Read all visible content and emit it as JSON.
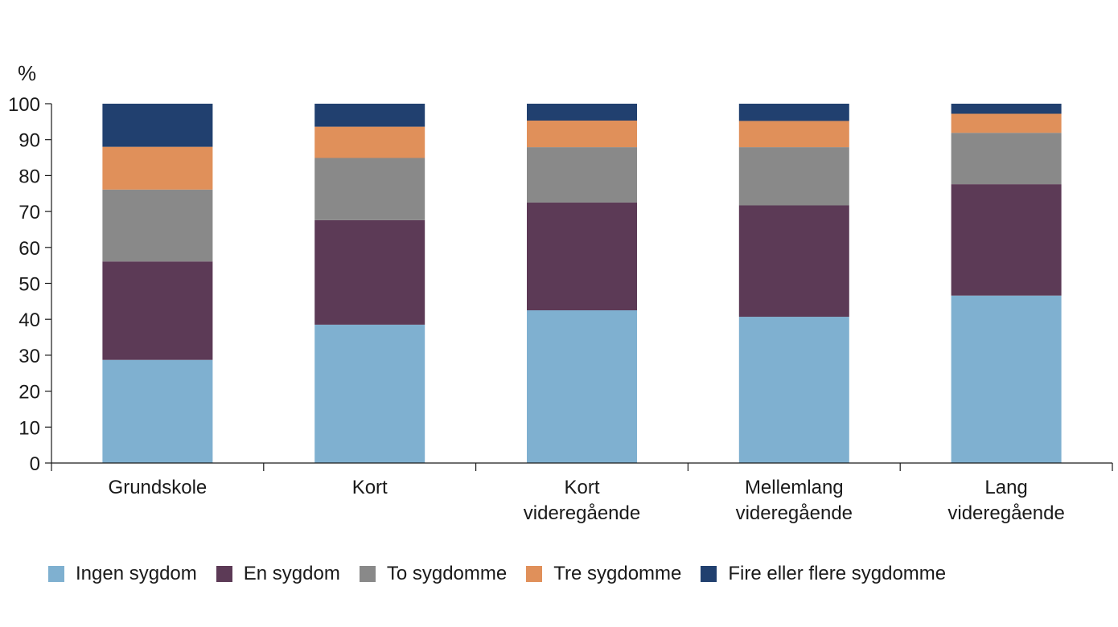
{
  "chart_data": {
    "type": "bar",
    "stacked": true,
    "title": "",
    "xlabel": "",
    "ylabel": "%",
    "ylim": [
      0,
      100
    ],
    "yticks": [
      0,
      10,
      20,
      30,
      40,
      50,
      60,
      70,
      80,
      90,
      100
    ],
    "grid": false,
    "legend_position": "bottom",
    "categories": [
      [
        "Grundskole"
      ],
      [
        "Kort"
      ],
      [
        "Kort",
        "videregående"
      ],
      [
        "Mellemlang",
        "videregående"
      ],
      [
        "Lang",
        "videregående"
      ]
    ],
    "series": [
      {
        "name": "Ingen sygdom",
        "color": "#7fb0d0",
        "values": [
          28.7,
          38.5,
          42.5,
          40.7,
          46.6
        ]
      },
      {
        "name": "En sygdom",
        "color": "#5c3a56",
        "values": [
          27.4,
          29.1,
          30.0,
          31.0,
          31.0
        ]
      },
      {
        "name": "To sygdomme",
        "color": "#898989",
        "values": [
          20.0,
          17.3,
          15.4,
          16.2,
          14.3
        ]
      },
      {
        "name": "Tre sygdomme",
        "color": "#e0905a",
        "values": [
          11.9,
          8.7,
          7.4,
          7.3,
          5.3
        ]
      },
      {
        "name": "Fire eller flere sygdomme",
        "color": "#21406f",
        "values": [
          12.0,
          6.4,
          4.7,
          4.8,
          2.8
        ]
      }
    ]
  }
}
